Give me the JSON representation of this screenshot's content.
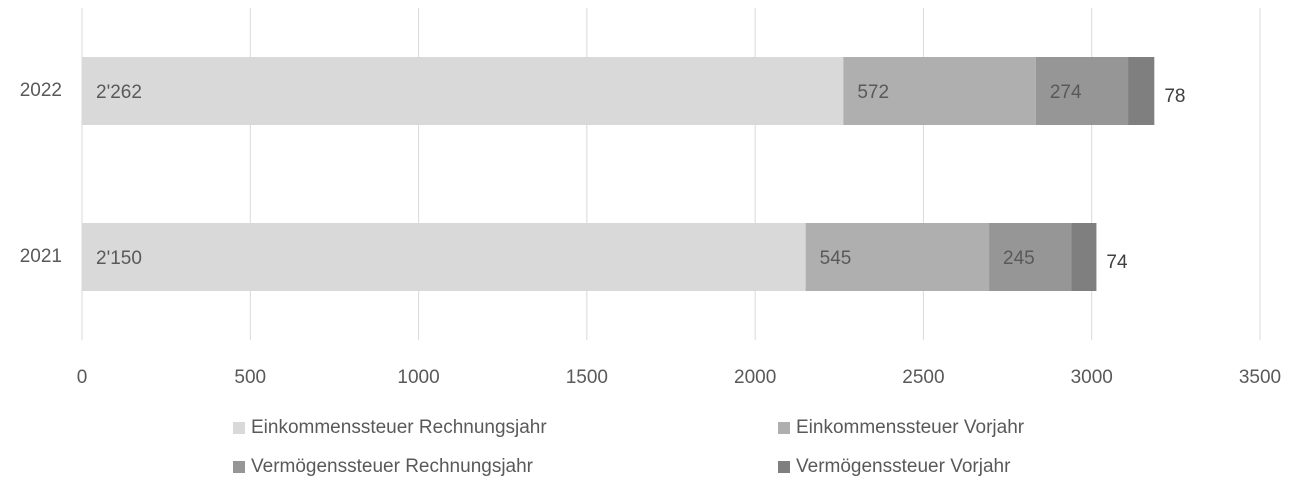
{
  "chart_data": {
    "type": "stacked_barh",
    "categories": [
      "2022",
      "2021"
    ],
    "series": [
      {
        "name": "Einkommenssteuer Rechnungsjahr",
        "color": "#d9d9d9",
        "values": [
          2262,
          2150
        ],
        "value_labels": [
          "2'262",
          "2'150"
        ]
      },
      {
        "name": "Einkommenssteuer Vorjahr",
        "color": "#afafaf",
        "values": [
          572,
          545
        ]
      },
      {
        "name": "Vermögenssteuer Rechnungsjahr",
        "color": "#969696",
        "values": [
          274,
          245
        ]
      },
      {
        "name": "Vermögenssteuer Vorjahr",
        "color": "#7f7f7f",
        "values": [
          78,
          74
        ]
      }
    ],
    "xlim": [
      0,
      3500
    ],
    "xticks": [
      0,
      500,
      1000,
      1500,
      2000,
      2500,
      3000,
      3500
    ],
    "grid": true
  }
}
